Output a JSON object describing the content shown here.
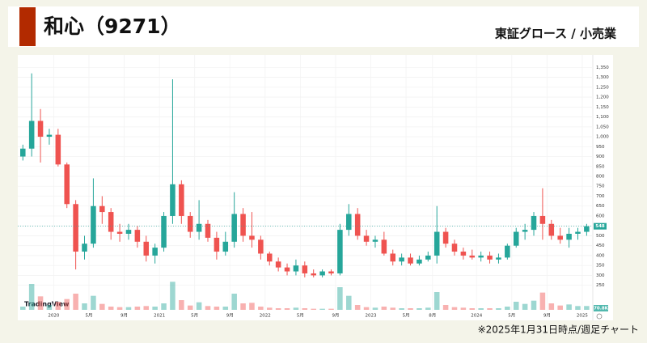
{
  "chart_data": {
    "type": "candlestick",
    "title": "和心（9271）",
    "subtitle": "東証グロース / 小売業",
    "note": "※2025年1月31日時点/週足チャート",
    "watermark": "TradingView",
    "up_color": "#26a69a",
    "down_color": "#ef5350",
    "grid": true,
    "last_price_line": true,
    "volume_last_label": "70.8K",
    "xlim": [
      -0.3,
      64.7
    ],
    "xticks": [
      {
        "value": 3.5,
        "label": "2020"
      },
      {
        "value": 7.5,
        "label": "5月"
      },
      {
        "value": 11.5,
        "label": "9月"
      },
      {
        "value": 15.5,
        "label": "2021"
      },
      {
        "value": 19.5,
        "label": "5月"
      },
      {
        "value": 23.5,
        "label": "9月"
      },
      {
        "value": 27.5,
        "label": "2022"
      },
      {
        "value": 31.5,
        "label": "5月"
      },
      {
        "value": 35.5,
        "label": "9月"
      },
      {
        "value": 39.5,
        "label": "2023"
      },
      {
        "value": 43.5,
        "label": "5月"
      },
      {
        "value": 46.5,
        "label": "8月"
      },
      {
        "value": 51.5,
        "label": "2024"
      },
      {
        "value": 55.5,
        "label": "5月"
      },
      {
        "value": 59.5,
        "label": "9月"
      },
      {
        "value": 63.5,
        "label": "2025"
      }
    ],
    "ylim": [
      220,
      1380
    ],
    "yticks": [
      250,
      300,
      350,
      400,
      450,
      500,
      550,
      600,
      650,
      700,
      750,
      800,
      850,
      900,
      950,
      {
        "value": 1000,
        "label": "1,000"
      },
      {
        "value": 1050,
        "label": "1,050"
      },
      {
        "value": 1100,
        "label": "1,100"
      },
      {
        "value": 1150,
        "label": "1,150"
      },
      {
        "value": 1200,
        "label": "1,200"
      },
      {
        "value": 1250,
        "label": "1,250"
      },
      {
        "value": 1300,
        "label": "1,300"
      },
      {
        "value": 1350,
        "label": "1,350"
      }
    ],
    "vlim": [
      0,
      600000
    ],
    "open": [
      900,
      940,
      1080,
      1000,
      1010,
      860,
      660,
      420,
      460,
      650,
      620,
      520,
      510,
      530,
      470,
      400,
      440,
      600,
      760,
      600,
      520,
      560,
      490,
      420,
      470,
      610,
      500,
      480,
      410,
      370,
      340,
      320,
      350,
      310,
      300,
      320,
      310,
      530,
      610,
      500,
      470,
      480,
      410,
      370,
      390,
      360,
      380,
      400,
      520,
      460,
      420,
      400,
      390,
      400,
      380,
      390,
      450,
      520,
      530,
      600,
      560,
      500,
      480,
      510,
      520
    ],
    "high": [
      960,
      1320,
      1140,
      1040,
      1040,
      870,
      680,
      500,
      790,
      700,
      640,
      560,
      560,
      550,
      500,
      460,
      620,
      1290,
      780,
      620,
      680,
      580,
      520,
      520,
      720,
      640,
      620,
      500,
      420,
      390,
      360,
      380,
      370,
      330,
      330,
      330,
      560,
      660,
      640,
      530,
      500,
      520,
      430,
      410,
      410,
      400,
      420,
      650,
      540,
      480,
      440,
      430,
      420,
      420,
      410,
      460,
      540,
      560,
      620,
      740,
      580,
      540,
      540,
      540,
      560
    ],
    "low": [
      880,
      900,
      870,
      960,
      850,
      640,
      330,
      380,
      440,
      560,
      480,
      470,
      480,
      440,
      370,
      360,
      420,
      560,
      560,
      490,
      480,
      470,
      380,
      400,
      440,
      470,
      440,
      380,
      350,
      320,
      300,
      300,
      290,
      290,
      290,
      300,
      300,
      500,
      480,
      450,
      440,
      400,
      350,
      350,
      350,
      350,
      370,
      360,
      440,
      400,
      380,
      380,
      370,
      360,
      360,
      380,
      440,
      480,
      500,
      480,
      480,
      460,
      440,
      480,
      500
    ],
    "close": [
      940,
      1080,
      1000,
      1010,
      860,
      660,
      420,
      460,
      650,
      620,
      520,
      510,
      530,
      470,
      400,
      440,
      600,
      760,
      600,
      520,
      560,
      490,
      420,
      470,
      610,
      500,
      480,
      410,
      370,
      340,
      320,
      350,
      310,
      300,
      320,
      310,
      530,
      610,
      500,
      470,
      480,
      410,
      370,
      390,
      360,
      380,
      400,
      520,
      460,
      420,
      400,
      390,
      400,
      380,
      390,
      450,
      520,
      530,
      600,
      560,
      500,
      480,
      510,
      520,
      548
    ],
    "volume": [
      60000,
      480000,
      250000,
      90000,
      150000,
      200000,
      300000,
      120000,
      260000,
      110000,
      60000,
      50000,
      50000,
      60000,
      70000,
      60000,
      120000,
      520000,
      180000,
      80000,
      140000,
      70000,
      60000,
      60000,
      300000,
      120000,
      130000,
      60000,
      40000,
      30000,
      30000,
      40000,
      30000,
      20000,
      20000,
      20000,
      420000,
      260000,
      90000,
      50000,
      40000,
      60000,
      40000,
      30000,
      30000,
      30000,
      40000,
      330000,
      90000,
      50000,
      40000,
      30000,
      30000,
      30000,
      30000,
      60000,
      150000,
      110000,
      170000,
      320000,
      120000,
      80000,
      100000,
      70000,
      70800
    ]
  }
}
